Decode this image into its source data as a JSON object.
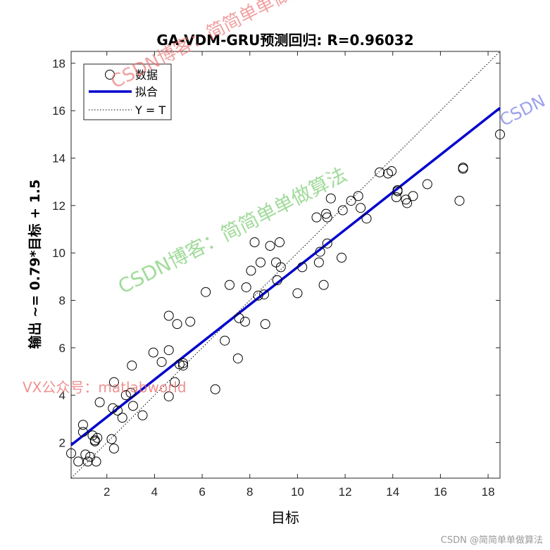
{
  "chart_data": {
    "type": "scatter",
    "title": "GA-VDM-GRU预测回归: R=0.96032",
    "xlabel": "目标",
    "ylabel": "输出 ~= 0.79*目标 + 1.5",
    "xlim": [
      0.5,
      18.5
    ],
    "ylim": [
      0.5,
      18.5
    ],
    "xticks": [
      2,
      4,
      6,
      8,
      10,
      12,
      14,
      16,
      18
    ],
    "yticks": [
      2,
      4,
      6,
      8,
      10,
      12,
      14,
      16,
      18
    ],
    "legend_position": "top-left",
    "series": [
      {
        "name": "数据",
        "style": "open-circle",
        "color": "#000000",
        "points": [
          [
            0.5,
            1.55
          ],
          [
            0.8,
            1.2
          ],
          [
            1.0,
            2.75
          ],
          [
            1.0,
            2.45
          ],
          [
            1.1,
            1.5
          ],
          [
            1.2,
            1.2
          ],
          [
            1.3,
            1.4
          ],
          [
            1.4,
            2.3
          ],
          [
            1.5,
            2.1
          ],
          [
            1.5,
            2.05
          ],
          [
            1.55,
            1.2
          ],
          [
            1.6,
            2.2
          ],
          [
            1.7,
            3.7
          ],
          [
            2.2,
            2.15
          ],
          [
            2.25,
            3.45
          ],
          [
            2.3,
            1.75
          ],
          [
            2.3,
            4.55
          ],
          [
            2.45,
            3.35
          ],
          [
            2.65,
            3.05
          ],
          [
            2.8,
            4.0
          ],
          [
            3.0,
            4.1
          ],
          [
            3.05,
            5.25
          ],
          [
            3.1,
            3.55
          ],
          [
            3.5,
            3.15
          ],
          [
            3.95,
            5.8
          ],
          [
            4.3,
            5.4
          ],
          [
            4.6,
            7.35
          ],
          [
            4.6,
            5.9
          ],
          [
            4.6,
            3.95
          ],
          [
            4.85,
            4.55
          ],
          [
            4.95,
            7.0
          ],
          [
            5.05,
            5.3
          ],
          [
            5.2,
            5.35
          ],
          [
            5.2,
            5.25
          ],
          [
            5.5,
            7.1
          ],
          [
            6.15,
            8.35
          ],
          [
            6.55,
            4.25
          ],
          [
            6.95,
            6.3
          ],
          [
            7.15,
            8.65
          ],
          [
            7.5,
            5.55
          ],
          [
            7.55,
            7.25
          ],
          [
            7.8,
            7.1
          ],
          [
            7.85,
            8.55
          ],
          [
            8.05,
            9.25
          ],
          [
            8.2,
            10.45
          ],
          [
            8.35,
            8.2
          ],
          [
            8.45,
            9.6
          ],
          [
            8.6,
            8.25
          ],
          [
            8.65,
            7.0
          ],
          [
            8.85,
            10.3
          ],
          [
            9.1,
            9.6
          ],
          [
            9.15,
            8.85
          ],
          [
            9.25,
            10.45
          ],
          [
            9.3,
            9.4
          ],
          [
            10.0,
            8.3
          ],
          [
            10.2,
            9.4
          ],
          [
            10.8,
            11.5
          ],
          [
            10.9,
            9.6
          ],
          [
            10.95,
            10.05
          ],
          [
            11.1,
            8.65
          ],
          [
            11.2,
            11.65
          ],
          [
            11.25,
            11.5
          ],
          [
            11.25,
            10.4
          ],
          [
            11.4,
            12.3
          ],
          [
            11.85,
            9.8
          ],
          [
            11.9,
            11.8
          ],
          [
            12.25,
            12.2
          ],
          [
            12.55,
            12.4
          ],
          [
            12.65,
            11.9
          ],
          [
            12.9,
            11.45
          ],
          [
            13.45,
            13.4
          ],
          [
            13.8,
            13.35
          ],
          [
            13.95,
            13.45
          ],
          [
            14.15,
            12.35
          ],
          [
            14.2,
            12.65
          ],
          [
            14.2,
            12.6
          ],
          [
            14.55,
            12.25
          ],
          [
            14.6,
            12.1
          ],
          [
            14.85,
            12.4
          ],
          [
            15.45,
            12.9
          ],
          [
            16.8,
            12.2
          ],
          [
            16.95,
            13.55
          ],
          [
            16.95,
            13.6
          ],
          [
            18.5,
            15.0
          ]
        ]
      },
      {
        "name": "拟合",
        "style": "line",
        "color": "#0000cc",
        "slope": 0.79,
        "intercept": 1.5
      },
      {
        "name": "Y = T",
        "style": "dotted",
        "color": "#000000",
        "slope": 1,
        "intercept": 0
      }
    ]
  },
  "watermarks": {
    "main": "CSDN博客：简简单单做算法",
    "right": "CSDN",
    "vx": "VX公众号：matlabworld",
    "footer": "CSDN @简简单单做算法"
  },
  "colors": {
    "fit": "#0000cc",
    "watermark_red": "rgba(232,110,110,0.65)",
    "watermark_green": "rgba(110,200,100,0.65)",
    "watermark_blue": "rgba(90,100,220,0.6)"
  }
}
